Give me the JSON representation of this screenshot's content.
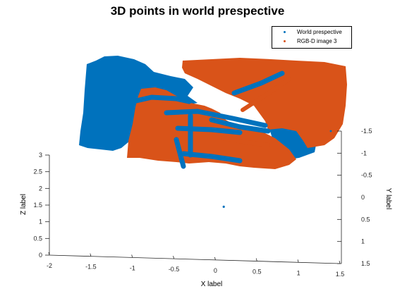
{
  "chart_data": {
    "type": "scatter",
    "title": "3D points in world prespective",
    "xlabel": "X label",
    "ylabel": "Y label",
    "zlabel": "Z label",
    "x_ticks": [
      "-2",
      "-1.5",
      "-1",
      "-0.5",
      "0",
      "0.5",
      "1",
      "1.5"
    ],
    "y_ticks": [
      "-1.5",
      "-1",
      "-0.5",
      "0",
      "0.5",
      "1",
      "1.5"
    ],
    "z_ticks": [
      "0",
      "0.5",
      "1",
      "1.5",
      "2",
      "2.5",
      "3"
    ],
    "xlim": [
      -2,
      1.5
    ],
    "ylim": [
      -1.5,
      1.5
    ],
    "zlim": [
      0,
      3
    ],
    "grid": false,
    "legend_position": "top-right",
    "series": [
      {
        "name": "World prespective",
        "color": "#0072BD",
        "marker": "point"
      },
      {
        "name": "RGB-D image 3",
        "color": "#D95319",
        "marker": "point"
      }
    ],
    "annotations": [
      {
        "series": "World prespective",
        "x": 0.1,
        "y": 0.0,
        "z": 1.45,
        "note": "single isolated point"
      }
    ]
  }
}
